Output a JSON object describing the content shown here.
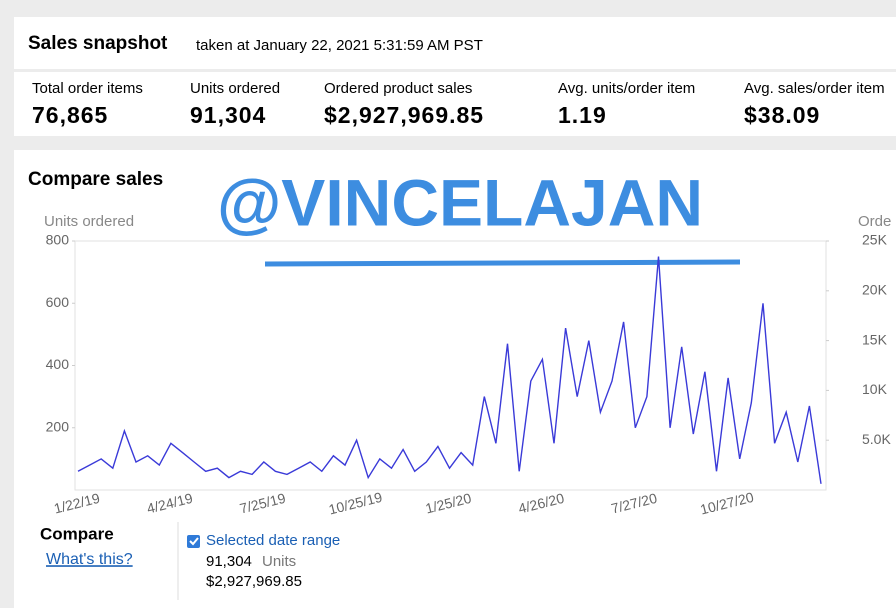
{
  "header": {
    "title": "Sales snapshot",
    "subtitle": "taken at January 22, 2021 5:31:59 AM PST"
  },
  "metrics": [
    {
      "label": "Total order items",
      "value": "76,865"
    },
    {
      "label": "Units ordered",
      "value": "91,304"
    },
    {
      "label": "Ordered product sales",
      "value": "$2,927,969.85"
    },
    {
      "label": "Avg. units/order item",
      "value": "1.19"
    },
    {
      "label": "Avg. sales/order item",
      "value": "$38.09"
    }
  ],
  "chart_data": {
    "type": "line",
    "title": "Compare sales",
    "y_label": "Units ordered",
    "y2_label": "Orde",
    "categories": [
      "1/22/19",
      null,
      null,
      null,
      null,
      null,
      null,
      null,
      "4/24/19",
      null,
      null,
      null,
      null,
      null,
      null,
      null,
      "7/25/19",
      null,
      null,
      null,
      null,
      null,
      null,
      null,
      "10/25/19",
      null,
      null,
      null,
      null,
      null,
      null,
      null,
      "1/25/20",
      null,
      null,
      null,
      null,
      null,
      null,
      null,
      "4/26/20",
      null,
      null,
      null,
      null,
      null,
      null,
      null,
      "7/27/20",
      null,
      null,
      null,
      null,
      null,
      null,
      null,
      "10/27/20",
      null,
      null,
      null,
      null,
      null,
      null,
      null,
      null
    ],
    "series": [
      {
        "name": "Selected date range",
        "color": "#3a3ad8",
        "values": [
          60,
          80,
          100,
          70,
          190,
          90,
          110,
          80,
          150,
          120,
          90,
          60,
          70,
          40,
          60,
          50,
          90,
          60,
          50,
          70,
          90,
          60,
          110,
          80,
          160,
          40,
          100,
          70,
          130,
          60,
          90,
          140,
          70,
          120,
          80,
          300,
          150,
          470,
          60,
          350,
          420,
          150,
          520,
          300,
          480,
          250,
          350,
          540,
          200,
          300,
          750,
          200,
          460,
          180,
          380,
          60,
          360,
          100,
          280,
          600,
          150,
          250,
          90,
          270,
          20
        ]
      }
    ],
    "ylim": [
      0,
      800
    ],
    "yticks": [
      200,
      400,
      600,
      800
    ],
    "y2lim": [
      0,
      25000
    ],
    "y2ticks": [
      {
        "value": 5000,
        "label": "5.0K"
      },
      {
        "value": 10000,
        "label": "10K"
      },
      {
        "value": 15000,
        "label": "15K"
      },
      {
        "value": 20000,
        "label": "20K"
      },
      {
        "value": 25000,
        "label": "25K"
      }
    ]
  },
  "watermark": "@VINCELAJAN",
  "compare": {
    "title": "Compare",
    "link": "What's this?",
    "units": "91,304",
    "units_label": "Units",
    "sales": "$2,927,969.85"
  }
}
